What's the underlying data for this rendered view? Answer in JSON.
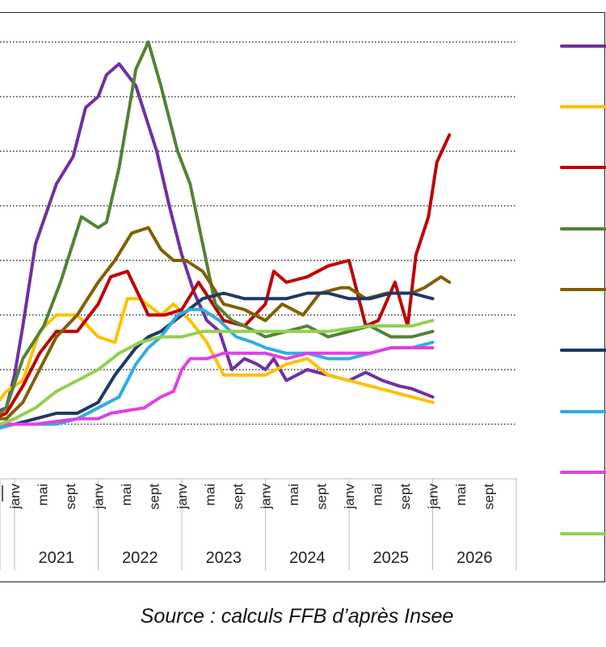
{
  "source_note": "Source : calculs FFB d’après Insee",
  "chart_data": {
    "type": "line",
    "title": "",
    "xlabel": "",
    "ylabel": "",
    "grid": true,
    "legend_position": "right",
    "x_range": [
      2020.75,
      2026.9
    ],
    "y_range": [
      -1,
      8
    ],
    "month_ticks": [
      "janv",
      "mai",
      "sept"
    ],
    "years": [
      "2021",
      "2022",
      "2023",
      "2024",
      "2025",
      "2026"
    ],
    "series": [
      {
        "color": "#7030A0",
        "points": [
          [
            2020.75,
            0.2
          ],
          [
            2020.9,
            0.3
          ],
          [
            2021.0,
            0.9
          ],
          [
            2021.1,
            1.8
          ],
          [
            2021.25,
            3.3
          ],
          [
            2021.5,
            4.4
          ],
          [
            2021.7,
            4.9
          ],
          [
            2021.85,
            5.8
          ],
          [
            2022.0,
            6.0
          ],
          [
            2022.1,
            6.4
          ],
          [
            2022.25,
            6.6
          ],
          [
            2022.45,
            6.2
          ],
          [
            2022.7,
            5.0
          ],
          [
            2022.85,
            4.0
          ],
          [
            2023.0,
            3.1
          ],
          [
            2023.15,
            2.4
          ],
          [
            2023.3,
            1.9
          ],
          [
            2023.45,
            1.7
          ],
          [
            2023.6,
            1.0
          ],
          [
            2023.75,
            1.2
          ],
          [
            2023.9,
            1.1
          ],
          [
            2024.0,
            1.0
          ],
          [
            2024.1,
            1.2
          ],
          [
            2024.25,
            0.8
          ],
          [
            2024.5,
            1.0
          ],
          [
            2024.75,
            0.9
          ],
          [
            2025.0,
            0.8
          ],
          [
            2025.2,
            0.95
          ],
          [
            2025.4,
            0.8
          ],
          [
            2025.6,
            0.7
          ],
          [
            2025.75,
            0.65
          ],
          [
            2026.0,
            0.5
          ]
        ]
      },
      {
        "color": "#FFC000",
        "points": [
          [
            2020.75,
            0.3
          ],
          [
            2020.9,
            0.6
          ],
          [
            2021.1,
            0.8
          ],
          [
            2021.3,
            1.7
          ],
          [
            2021.5,
            2.0
          ],
          [
            2021.75,
            2.0
          ],
          [
            2022.0,
            1.6
          ],
          [
            2022.2,
            1.5
          ],
          [
            2022.35,
            2.3
          ],
          [
            2022.5,
            2.3
          ],
          [
            2022.75,
            2.0
          ],
          [
            2022.9,
            2.2
          ],
          [
            2023.1,
            1.9
          ],
          [
            2023.3,
            1.5
          ],
          [
            2023.5,
            0.9
          ],
          [
            2023.75,
            0.9
          ],
          [
            2024.0,
            0.9
          ],
          [
            2024.25,
            1.1
          ],
          [
            2024.5,
            1.2
          ],
          [
            2024.75,
            0.9
          ],
          [
            2025.0,
            0.8
          ],
          [
            2025.25,
            0.7
          ],
          [
            2025.5,
            0.6
          ],
          [
            2025.75,
            0.5
          ],
          [
            2026.0,
            0.4
          ]
        ]
      },
      {
        "color": "#C00000",
        "points": [
          [
            2020.75,
            0.1
          ],
          [
            2020.9,
            0.2
          ],
          [
            2021.1,
            0.7
          ],
          [
            2021.3,
            1.3
          ],
          [
            2021.5,
            1.7
          ],
          [
            2021.75,
            1.7
          ],
          [
            2022.0,
            2.2
          ],
          [
            2022.15,
            2.7
          ],
          [
            2022.35,
            2.8
          ],
          [
            2022.6,
            2.0
          ],
          [
            2022.8,
            2.0
          ],
          [
            2023.0,
            2.1
          ],
          [
            2023.2,
            2.6
          ],
          [
            2023.5,
            1.9
          ],
          [
            2023.75,
            1.8
          ],
          [
            2024.0,
            2.2
          ],
          [
            2024.1,
            2.8
          ],
          [
            2024.25,
            2.6
          ],
          [
            2024.5,
            2.7
          ],
          [
            2024.75,
            2.9
          ],
          [
            2025.0,
            3.0
          ],
          [
            2025.2,
            1.8
          ],
          [
            2025.35,
            1.9
          ],
          [
            2025.55,
            2.6
          ],
          [
            2025.7,
            1.8
          ],
          [
            2025.8,
            3.1
          ],
          [
            2025.95,
            3.8
          ],
          [
            2026.05,
            4.8
          ],
          [
            2026.2,
            5.3
          ]
        ]
      },
      {
        "color": "#548235",
        "points": [
          [
            2020.75,
            0.1
          ],
          [
            2020.9,
            0.3
          ],
          [
            2021.1,
            1.2
          ],
          [
            2021.35,
            1.8
          ],
          [
            2021.55,
            2.6
          ],
          [
            2021.8,
            3.8
          ],
          [
            2022.0,
            3.6
          ],
          [
            2022.1,
            3.7
          ],
          [
            2022.25,
            4.7
          ],
          [
            2022.45,
            6.5
          ],
          [
            2022.6,
            7.0
          ],
          [
            2022.75,
            6.2
          ],
          [
            2022.95,
            5.0
          ],
          [
            2023.1,
            4.4
          ],
          [
            2023.25,
            3.3
          ],
          [
            2023.4,
            2.2
          ],
          [
            2023.6,
            1.9
          ],
          [
            2023.75,
            1.8
          ],
          [
            2024.0,
            1.6
          ],
          [
            2024.25,
            1.7
          ],
          [
            2024.5,
            1.8
          ],
          [
            2024.75,
            1.6
          ],
          [
            2025.0,
            1.7
          ],
          [
            2025.25,
            1.8
          ],
          [
            2025.5,
            1.6
          ],
          [
            2025.75,
            1.6
          ],
          [
            2026.0,
            1.7
          ]
        ]
      },
      {
        "color": "#7F6000",
        "points": [
          [
            2020.75,
            0.1
          ],
          [
            2020.9,
            0.1
          ],
          [
            2021.1,
            0.4
          ],
          [
            2021.3,
            1.0
          ],
          [
            2021.5,
            1.6
          ],
          [
            2021.75,
            2.0
          ],
          [
            2022.0,
            2.6
          ],
          [
            2022.2,
            3.0
          ],
          [
            2022.4,
            3.5
          ],
          [
            2022.6,
            3.6
          ],
          [
            2022.75,
            3.2
          ],
          [
            2022.9,
            3.0
          ],
          [
            2023.05,
            3.0
          ],
          [
            2023.25,
            2.8
          ],
          [
            2023.5,
            2.2
          ],
          [
            2023.75,
            2.1
          ],
          [
            2024.0,
            1.9
          ],
          [
            2024.2,
            2.2
          ],
          [
            2024.45,
            2.0
          ],
          [
            2024.65,
            2.4
          ],
          [
            2024.9,
            2.5
          ],
          [
            2025.0,
            2.5
          ],
          [
            2025.2,
            2.3
          ],
          [
            2025.45,
            2.4
          ],
          [
            2025.75,
            2.4
          ],
          [
            2025.9,
            2.5
          ],
          [
            2026.1,
            2.7
          ],
          [
            2026.2,
            2.6
          ]
        ]
      },
      {
        "color": "#1F3864",
        "points": [
          [
            2020.75,
            -0.05
          ],
          [
            2021.0,
            0.0
          ],
          [
            2021.25,
            0.1
          ],
          [
            2021.5,
            0.2
          ],
          [
            2021.75,
            0.2
          ],
          [
            2022.0,
            0.4
          ],
          [
            2022.2,
            0.9
          ],
          [
            2022.45,
            1.4
          ],
          [
            2022.6,
            1.6
          ],
          [
            2022.75,
            1.7
          ],
          [
            2023.0,
            2.0
          ],
          [
            2023.25,
            2.3
          ],
          [
            2023.5,
            2.4
          ],
          [
            2023.75,
            2.3
          ],
          [
            2024.0,
            2.3
          ],
          [
            2024.25,
            2.3
          ],
          [
            2024.5,
            2.4
          ],
          [
            2024.75,
            2.4
          ],
          [
            2025.0,
            2.3
          ],
          [
            2025.25,
            2.3
          ],
          [
            2025.5,
            2.4
          ],
          [
            2025.75,
            2.4
          ],
          [
            2026.0,
            2.3
          ]
        ]
      },
      {
        "color": "#2EAEE3",
        "points": [
          [
            2020.75,
            -0.1
          ],
          [
            2021.0,
            0.0
          ],
          [
            2021.25,
            0.0
          ],
          [
            2021.5,
            0.0
          ],
          [
            2021.75,
            0.1
          ],
          [
            2022.0,
            0.3
          ],
          [
            2022.25,
            0.5
          ],
          [
            2022.45,
            1.1
          ],
          [
            2022.6,
            1.4
          ],
          [
            2022.75,
            1.6
          ],
          [
            2022.95,
            2.0
          ],
          [
            2023.1,
            2.1
          ],
          [
            2023.25,
            2.1
          ],
          [
            2023.45,
            1.9
          ],
          [
            2023.65,
            1.6
          ],
          [
            2023.85,
            1.5
          ],
          [
            2024.0,
            1.4
          ],
          [
            2024.25,
            1.3
          ],
          [
            2024.5,
            1.3
          ],
          [
            2024.75,
            1.2
          ],
          [
            2025.0,
            1.2
          ],
          [
            2025.25,
            1.3
          ],
          [
            2025.5,
            1.4
          ],
          [
            2025.75,
            1.4
          ],
          [
            2026.0,
            1.5
          ]
        ]
      },
      {
        "color": "#E040E8",
        "points": [
          [
            2020.75,
            0.0
          ],
          [
            2021.0,
            0.0
          ],
          [
            2021.25,
            0.0
          ],
          [
            2021.5,
            0.05
          ],
          [
            2021.75,
            0.1
          ],
          [
            2022.0,
            0.1
          ],
          [
            2022.15,
            0.2
          ],
          [
            2022.35,
            0.25
          ],
          [
            2022.55,
            0.3
          ],
          [
            2022.75,
            0.5
          ],
          [
            2022.9,
            0.6
          ],
          [
            2023.0,
            1.0
          ],
          [
            2023.1,
            1.2
          ],
          [
            2023.3,
            1.2
          ],
          [
            2023.5,
            1.3
          ],
          [
            2023.75,
            1.3
          ],
          [
            2024.0,
            1.3
          ],
          [
            2024.25,
            1.2
          ],
          [
            2024.5,
            1.3
          ],
          [
            2024.75,
            1.3
          ],
          [
            2025.0,
            1.3
          ],
          [
            2025.25,
            1.3
          ],
          [
            2025.5,
            1.4
          ],
          [
            2025.75,
            1.4
          ],
          [
            2026.0,
            1.4
          ]
        ]
      },
      {
        "color": "#92D050",
        "points": [
          [
            2020.75,
            -0.05
          ],
          [
            2021.0,
            0.1
          ],
          [
            2021.25,
            0.3
          ],
          [
            2021.5,
            0.6
          ],
          [
            2021.75,
            0.8
          ],
          [
            2022.0,
            1.0
          ],
          [
            2022.25,
            1.3
          ],
          [
            2022.5,
            1.5
          ],
          [
            2022.75,
            1.6
          ],
          [
            2023.0,
            1.6
          ],
          [
            2023.25,
            1.7
          ],
          [
            2023.5,
            1.7
          ],
          [
            2023.75,
            1.7
          ],
          [
            2024.0,
            1.7
          ],
          [
            2024.25,
            1.7
          ],
          [
            2024.5,
            1.7
          ],
          [
            2024.75,
            1.7
          ],
          [
            2025.0,
            1.75
          ],
          [
            2025.25,
            1.8
          ],
          [
            2025.5,
            1.8
          ],
          [
            2025.75,
            1.8
          ],
          [
            2026.0,
            1.9
          ]
        ]
      }
    ]
  }
}
